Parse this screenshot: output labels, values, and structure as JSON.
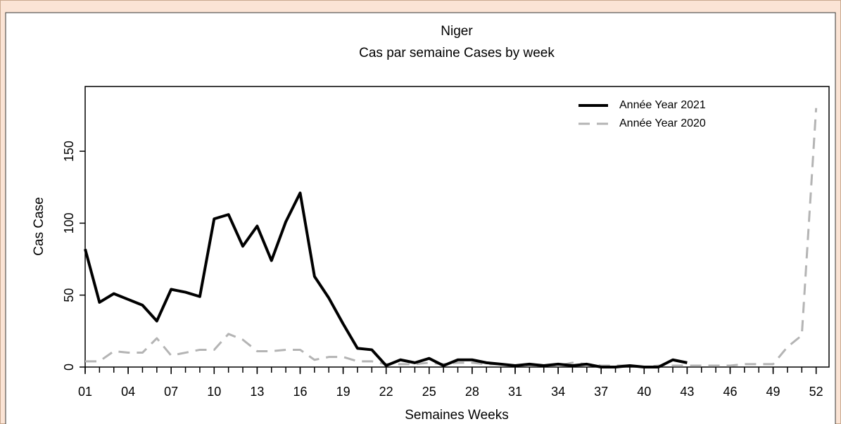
{
  "chart_data": {
    "type": "line",
    "title": "Niger",
    "subtitle": "Cas par semaine Cases by week",
    "xlabel": "Semaines Weeks",
    "ylabel": "Cas Case",
    "xlim": [
      1,
      52.9
    ],
    "ylim": [
      0,
      195
    ],
    "xticks": [
      {
        "value": 1,
        "label": "01"
      },
      {
        "value": 4,
        "label": "04"
      },
      {
        "value": 7,
        "label": "07"
      },
      10,
      13,
      16,
      19,
      22,
      25,
      28,
      31,
      34,
      37,
      40,
      43,
      46,
      49,
      52
    ],
    "yticks": [
      0,
      50,
      100,
      150
    ],
    "legend": "top-right",
    "series": [
      {
        "name": "Année Year 2021",
        "color": "#000000",
        "dash": "solid",
        "x": [
          1,
          2,
          3,
          4,
          5,
          6,
          7,
          8,
          9,
          10,
          11,
          12,
          13,
          14,
          15,
          16,
          17,
          18,
          19,
          20,
          21,
          22,
          23,
          24,
          25,
          26,
          27,
          28,
          29,
          30,
          31,
          32,
          33,
          34,
          35,
          36,
          37,
          38,
          39,
          40,
          41,
          42,
          43
        ],
        "values": [
          82,
          45,
          51,
          47,
          43,
          32,
          54,
          52,
          49,
          103,
          106,
          84,
          98,
          74,
          101,
          121,
          63,
          48,
          30,
          13,
          12,
          1,
          5,
          3,
          6,
          1,
          5,
          5,
          3,
          2,
          1,
          2,
          1,
          2,
          1,
          2,
          0,
          0,
          1,
          0,
          0,
          5,
          3
        ]
      },
      {
        "name": "Année Year 2020",
        "color": "#b4b4b4",
        "dash": "dashed",
        "x": [
          1,
          2,
          3,
          4,
          5,
          6,
          7,
          8,
          9,
          10,
          11,
          12,
          13,
          14,
          15,
          16,
          17,
          18,
          19,
          20,
          21,
          22,
          23,
          24,
          25,
          26,
          27,
          28,
          29,
          30,
          31,
          32,
          33,
          34,
          35,
          36,
          37,
          38,
          39,
          40,
          41,
          42,
          43,
          44,
          45,
          46,
          47,
          48,
          49,
          50,
          51,
          52
        ],
        "values": [
          4,
          4,
          11,
          10,
          10,
          20,
          8,
          10,
          12,
          12,
          23,
          19,
          11,
          11,
          12,
          12,
          5,
          7,
          7,
          4,
          4,
          2,
          2,
          2,
          3,
          2,
          3,
          3,
          2,
          2,
          1,
          1,
          1,
          1,
          3,
          2,
          1,
          1,
          1,
          0,
          1,
          1,
          1,
          1,
          1,
          1,
          2,
          2,
          2,
          14,
          22,
          180
        ]
      }
    ]
  }
}
